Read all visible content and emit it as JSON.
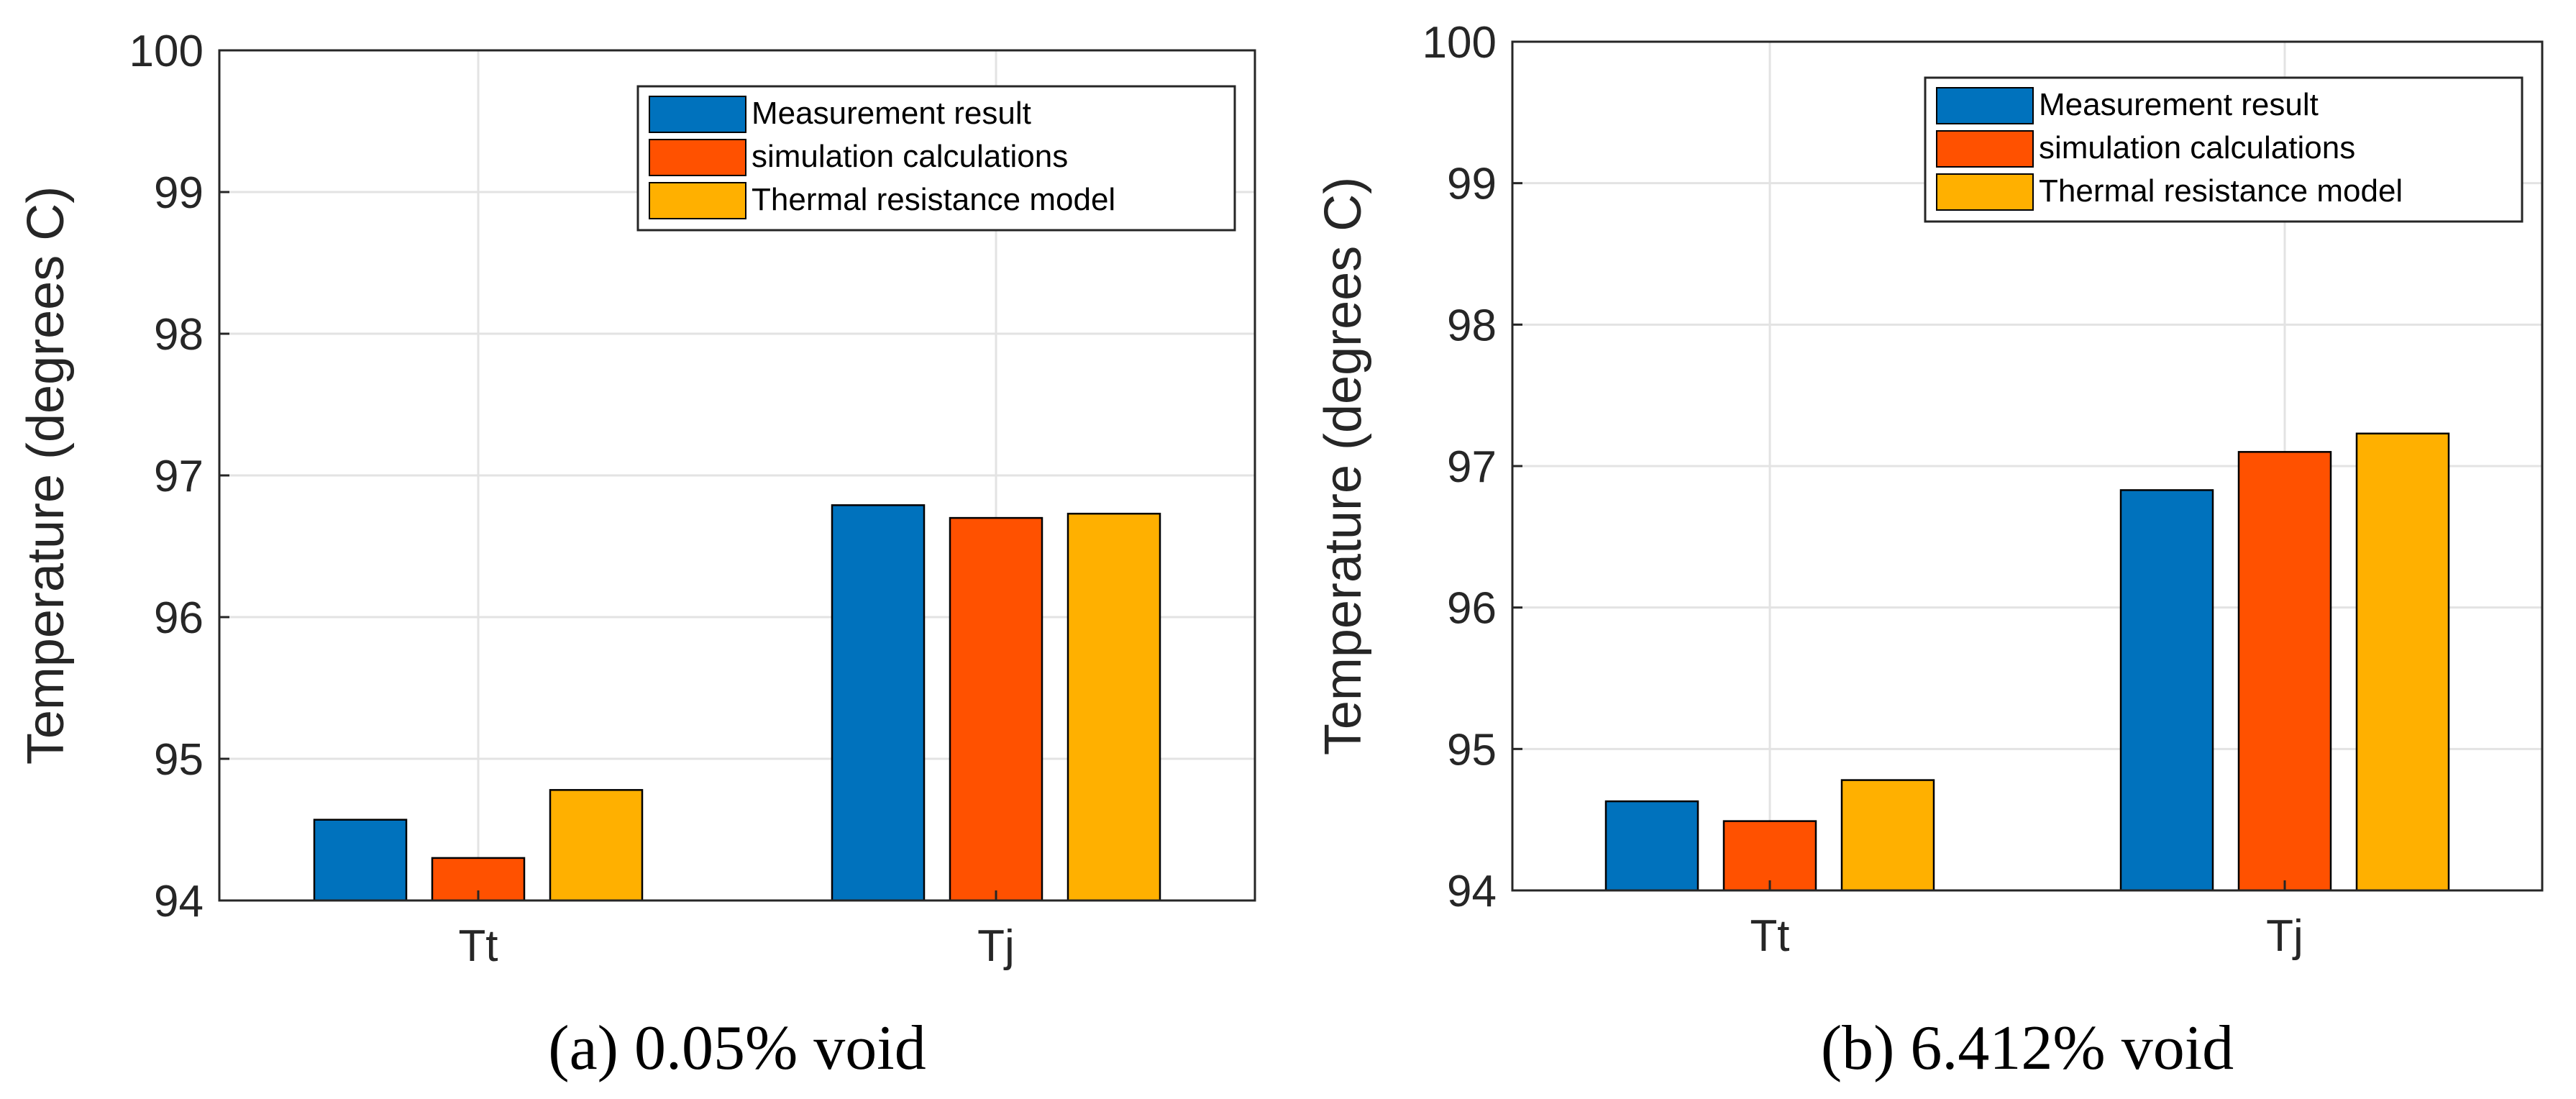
{
  "chart_data": [
    {
      "type": "bar",
      "caption": "(a) 0.05% void",
      "ylabel": "Temperature (degrees C)",
      "ylim": [
        94,
        100
      ],
      "yticks": [
        "94",
        "95",
        "96",
        "97",
        "98",
        "99",
        "100"
      ],
      "categories": [
        "Tt",
        "Tj"
      ],
      "grid": true,
      "legend_position": "top-right",
      "series": [
        {
          "name": "Measurement result",
          "color": "#0072BD",
          "values": [
            94.57,
            96.79
          ]
        },
        {
          "name": "simulation calculations",
          "color": "#FF5100",
          "values": [
            94.3,
            96.7
          ]
        },
        {
          "name": "Thermal resistance model",
          "color": "#FFB000",
          "values": [
            94.78,
            96.73
          ]
        }
      ]
    },
    {
      "type": "bar",
      "caption": "(b) 6.412% void",
      "ylabel": "Temperature (degrees C)",
      "ylim": [
        94,
        100
      ],
      "yticks": [
        "94",
        "95",
        "96",
        "97",
        "98",
        "99",
        "100"
      ],
      "categories": [
        "Tt",
        "Tj"
      ],
      "grid": true,
      "legend_position": "top-right",
      "series": [
        {
          "name": "Measurement result",
          "color": "#0072BD",
          "values": [
            94.63,
            96.83
          ]
        },
        {
          "name": "simulation calculations",
          "color": "#FF5100",
          "values": [
            94.49,
            97.1
          ]
        },
        {
          "name": "Thermal resistance model",
          "color": "#FFB000",
          "values": [
            94.78,
            97.23
          ]
        }
      ]
    }
  ]
}
